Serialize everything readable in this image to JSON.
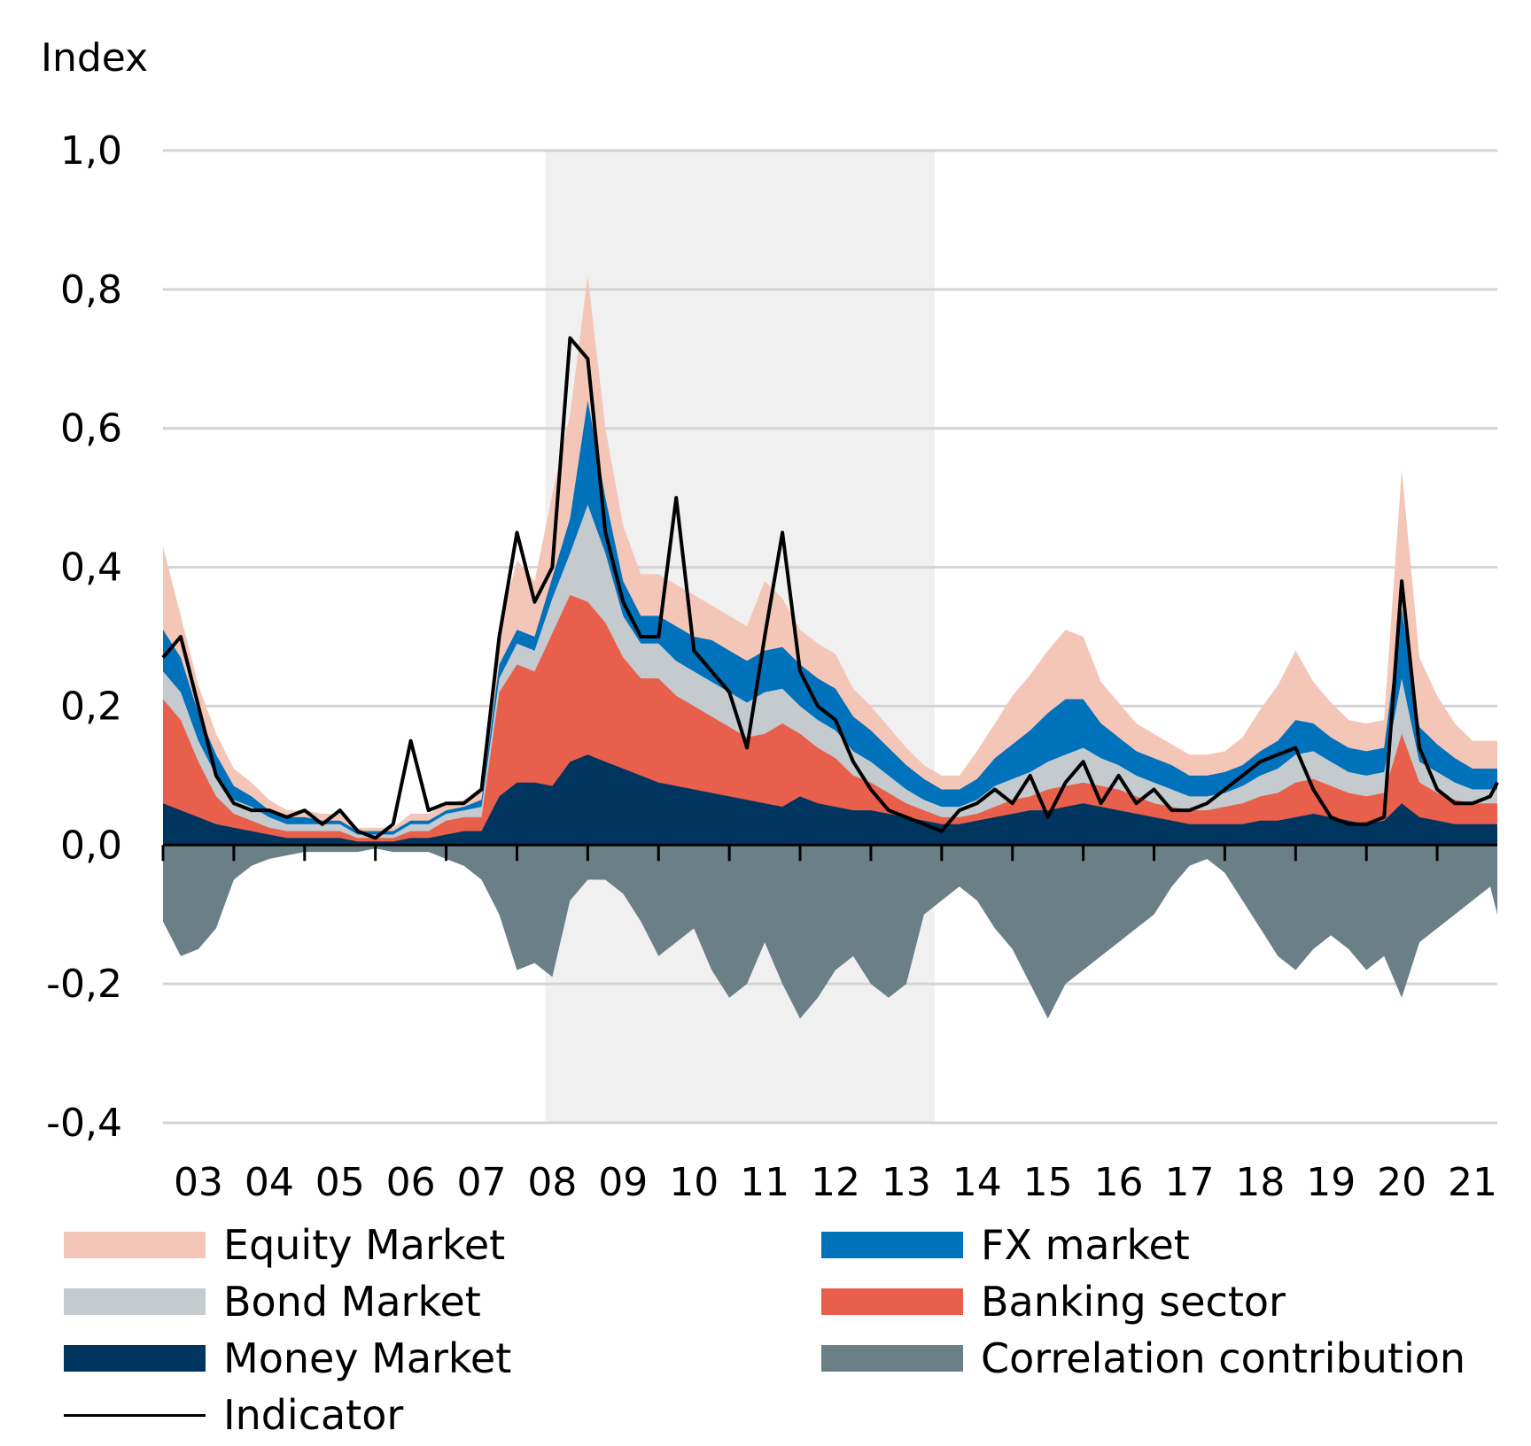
{
  "chart_data": {
    "type": "area",
    "ylabel": "Index",
    "ylim": [
      -0.4,
      1.0
    ],
    "yticks": [
      "1,0",
      "0,8",
      "0,6",
      "0,4",
      "0,2",
      "0,0",
      "-0,2",
      "-0,4"
    ],
    "ytick_values": [
      1.0,
      0.8,
      0.6,
      0.4,
      0.2,
      0.0,
      -0.2,
      -0.4
    ],
    "xlim": [
      2003.0,
      2021.85
    ],
    "xticks": [
      "03",
      "04",
      "05",
      "06",
      "07",
      "08",
      "09",
      "10",
      "11",
      "12",
      "13",
      "14",
      "15",
      "16",
      "17",
      "18",
      "19",
      "20",
      "21"
    ],
    "shaded_period": [
      2008.4,
      2013.9
    ],
    "grid": true,
    "stacked": true,
    "x": [
      2003.0,
      2003.25,
      2003.5,
      2003.75,
      2004.0,
      2004.25,
      2004.5,
      2004.75,
      2005.0,
      2005.25,
      2005.5,
      2005.75,
      2006.0,
      2006.25,
      2006.5,
      2006.75,
      2007.0,
      2007.25,
      2007.5,
      2007.75,
      2008.0,
      2008.25,
      2008.5,
      2008.75,
      2009.0,
      2009.25,
      2009.5,
      2009.75,
      2010.0,
      2010.25,
      2010.5,
      2010.75,
      2011.0,
      2011.25,
      2011.5,
      2011.75,
      2012.0,
      2012.25,
      2012.5,
      2012.75,
      2013.0,
      2013.25,
      2013.5,
      2013.75,
      2014.0,
      2014.25,
      2014.5,
      2014.75,
      2015.0,
      2015.25,
      2015.5,
      2015.75,
      2016.0,
      2016.25,
      2016.5,
      2016.75,
      2017.0,
      2017.25,
      2017.5,
      2017.75,
      2018.0,
      2018.25,
      2018.5,
      2018.75,
      2019.0,
      2019.25,
      2019.5,
      2019.75,
      2020.0,
      2020.25,
      2020.5,
      2020.75,
      2021.0,
      2021.25,
      2021.5,
      2021.75,
      2021.85
    ],
    "series": [
      {
        "name": "Money Market",
        "color": "#003560",
        "values": [
          0.06,
          0.05,
          0.04,
          0.03,
          0.025,
          0.02,
          0.015,
          0.01,
          0.01,
          0.01,
          0.01,
          0.005,
          0.005,
          0.005,
          0.01,
          0.01,
          0.015,
          0.02,
          0.02,
          0.07,
          0.09,
          0.09,
          0.085,
          0.12,
          0.13,
          0.12,
          0.11,
          0.1,
          0.09,
          0.085,
          0.08,
          0.075,
          0.07,
          0.065,
          0.06,
          0.055,
          0.07,
          0.06,
          0.055,
          0.05,
          0.05,
          0.045,
          0.04,
          0.035,
          0.03,
          0.03,
          0.035,
          0.04,
          0.045,
          0.05,
          0.05,
          0.055,
          0.06,
          0.055,
          0.05,
          0.045,
          0.04,
          0.035,
          0.03,
          0.03,
          0.03,
          0.03,
          0.035,
          0.035,
          0.04,
          0.045,
          0.04,
          0.035,
          0.03,
          0.035,
          0.06,
          0.04,
          0.035,
          0.03,
          0.03,
          0.03,
          0.03
        ]
      },
      {
        "name": "Banking sector",
        "color": "#e8604c",
        "values": [
          0.15,
          0.13,
          0.08,
          0.04,
          0.02,
          0.015,
          0.01,
          0.01,
          0.01,
          0.01,
          0.01,
          0.005,
          0.005,
          0.005,
          0.01,
          0.01,
          0.02,
          0.02,
          0.02,
          0.15,
          0.17,
          0.16,
          0.22,
          0.24,
          0.22,
          0.2,
          0.16,
          0.14,
          0.15,
          0.13,
          0.12,
          0.11,
          0.1,
          0.09,
          0.1,
          0.12,
          0.09,
          0.08,
          0.07,
          0.05,
          0.04,
          0.03,
          0.02,
          0.015,
          0.01,
          0.01,
          0.01,
          0.015,
          0.02,
          0.02,
          0.03,
          0.03,
          0.03,
          0.03,
          0.03,
          0.025,
          0.02,
          0.02,
          0.02,
          0.02,
          0.025,
          0.03,
          0.035,
          0.04,
          0.05,
          0.05,
          0.045,
          0.04,
          0.04,
          0.04,
          0.1,
          0.05,
          0.04,
          0.035,
          0.03,
          0.03,
          0.03
        ]
      },
      {
        "name": "Bond Market",
        "color": "#c4cace",
        "values": [
          0.04,
          0.04,
          0.03,
          0.03,
          0.02,
          0.02,
          0.015,
          0.01,
          0.01,
          0.01,
          0.01,
          0.005,
          0.005,
          0.005,
          0.01,
          0.01,
          0.01,
          0.01,
          0.015,
          0.02,
          0.03,
          0.03,
          0.05,
          0.06,
          0.14,
          0.1,
          0.06,
          0.05,
          0.05,
          0.05,
          0.05,
          0.05,
          0.05,
          0.05,
          0.06,
          0.05,
          0.04,
          0.04,
          0.04,
          0.035,
          0.03,
          0.025,
          0.02,
          0.015,
          0.015,
          0.015,
          0.02,
          0.03,
          0.03,
          0.035,
          0.04,
          0.045,
          0.05,
          0.04,
          0.035,
          0.03,
          0.03,
          0.025,
          0.02,
          0.02,
          0.02,
          0.025,
          0.03,
          0.035,
          0.04,
          0.04,
          0.035,
          0.03,
          0.03,
          0.03,
          0.08,
          0.03,
          0.03,
          0.025,
          0.02,
          0.02,
          0.02
        ]
      },
      {
        "name": "FX market",
        "color": "#0071bb",
        "values": [
          0.06,
          0.05,
          0.04,
          0.03,
          0.02,
          0.015,
          0.01,
          0.01,
          0.01,
          0.005,
          0.005,
          0.005,
          0.005,
          0.005,
          0.005,
          0.005,
          0.005,
          0.005,
          0.01,
          0.02,
          0.02,
          0.02,
          0.03,
          0.05,
          0.15,
          0.08,
          0.05,
          0.04,
          0.04,
          0.05,
          0.05,
          0.06,
          0.06,
          0.06,
          0.06,
          0.06,
          0.06,
          0.06,
          0.06,
          0.05,
          0.045,
          0.04,
          0.035,
          0.03,
          0.025,
          0.025,
          0.03,
          0.04,
          0.05,
          0.06,
          0.07,
          0.08,
          0.07,
          0.05,
          0.04,
          0.035,
          0.035,
          0.035,
          0.03,
          0.03,
          0.03,
          0.03,
          0.035,
          0.04,
          0.05,
          0.04,
          0.035,
          0.035,
          0.035,
          0.035,
          0.1,
          0.05,
          0.04,
          0.035,
          0.03,
          0.03,
          0.03
        ]
      },
      {
        "name": "Equity Market",
        "color": "#f4c6b8",
        "values": [
          0.12,
          0.06,
          0.04,
          0.03,
          0.025,
          0.02,
          0.015,
          0.01,
          0.01,
          0.01,
          0.01,
          0.005,
          0.005,
          0.005,
          0.01,
          0.01,
          0.01,
          0.01,
          0.015,
          0.05,
          0.1,
          0.08,
          0.12,
          0.15,
          0.18,
          0.1,
          0.08,
          0.06,
          0.06,
          0.06,
          0.06,
          0.05,
          0.05,
          0.05,
          0.1,
          0.07,
          0.05,
          0.05,
          0.05,
          0.04,
          0.035,
          0.03,
          0.025,
          0.02,
          0.02,
          0.02,
          0.04,
          0.05,
          0.07,
          0.08,
          0.09,
          0.1,
          0.09,
          0.06,
          0.05,
          0.04,
          0.035,
          0.03,
          0.03,
          0.03,
          0.03,
          0.04,
          0.06,
          0.08,
          0.1,
          0.06,
          0.05,
          0.04,
          0.04,
          0.04,
          0.2,
          0.1,
          0.07,
          0.05,
          0.04,
          0.04,
          0.04
        ]
      },
      {
        "name": "Correlation contribution",
        "color": "#6b7f86",
        "values": [
          -0.11,
          -0.16,
          -0.15,
          -0.12,
          -0.05,
          -0.03,
          -0.02,
          -0.015,
          -0.01,
          -0.01,
          -0.01,
          -0.01,
          -0.005,
          -0.01,
          -0.01,
          -0.01,
          -0.02,
          -0.03,
          -0.05,
          -0.1,
          -0.18,
          -0.17,
          -0.19,
          -0.08,
          -0.05,
          -0.05,
          -0.07,
          -0.11,
          -0.16,
          -0.14,
          -0.12,
          -0.18,
          -0.22,
          -0.2,
          -0.14,
          -0.2,
          -0.25,
          -0.22,
          -0.18,
          -0.16,
          -0.2,
          -0.22,
          -0.2,
          -0.1,
          -0.08,
          -0.06,
          -0.08,
          -0.12,
          -0.15,
          -0.2,
          -0.25,
          -0.2,
          -0.18,
          -0.16,
          -0.14,
          -0.12,
          -0.1,
          -0.06,
          -0.03,
          -0.02,
          -0.04,
          -0.08,
          -0.12,
          -0.16,
          -0.18,
          -0.15,
          -0.13,
          -0.15,
          -0.18,
          -0.16,
          -0.22,
          -0.14,
          -0.12,
          -0.1,
          -0.08,
          -0.06,
          -0.1
        ]
      },
      {
        "name": "Indicator",
        "color": "#000000",
        "type": "line",
        "values": [
          0.27,
          0.3,
          0.2,
          0.1,
          0.06,
          0.05,
          0.05,
          0.04,
          0.05,
          0.03,
          0.05,
          0.02,
          0.01,
          0.03,
          0.15,
          0.05,
          0.06,
          0.06,
          0.08,
          0.3,
          0.45,
          0.35,
          0.4,
          0.73,
          0.7,
          0.45,
          0.35,
          0.3,
          0.3,
          0.5,
          0.28,
          0.25,
          0.22,
          0.14,
          0.3,
          0.45,
          0.25,
          0.2,
          0.18,
          0.12,
          0.08,
          0.05,
          0.04,
          0.03,
          0.02,
          0.05,
          0.06,
          0.08,
          0.06,
          0.1,
          0.04,
          0.09,
          0.12,
          0.06,
          0.1,
          0.06,
          0.08,
          0.05,
          0.05,
          0.06,
          0.08,
          0.1,
          0.12,
          0.13,
          0.14,
          0.08,
          0.04,
          0.03,
          0.03,
          0.04,
          0.38,
          0.14,
          0.08,
          0.06,
          0.06,
          0.07,
          0.09
        ]
      }
    ]
  },
  "legend": {
    "items": [
      {
        "label": "Equity Market",
        "color": "#f4c6b8",
        "kind": "swatch"
      },
      {
        "label": "FX market",
        "color": "#0071bb",
        "kind": "swatch"
      },
      {
        "label": "Bond Market",
        "color": "#c4cace",
        "kind": "swatch"
      },
      {
        "label": "Banking sector",
        "color": "#e8604c",
        "kind": "swatch"
      },
      {
        "label": "Money Market",
        "color": "#003560",
        "kind": "swatch"
      },
      {
        "label": "Correlation contribution",
        "color": "#6b7f86",
        "kind": "swatch"
      },
      {
        "label": "Indicator",
        "color": "#000000",
        "kind": "line"
      }
    ]
  }
}
